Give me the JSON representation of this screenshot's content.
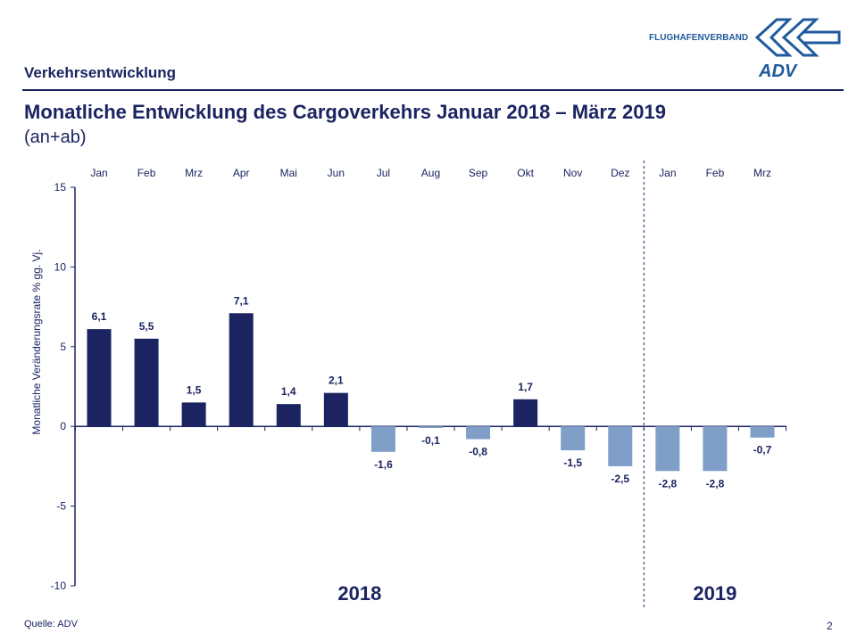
{
  "header": {
    "section": "Verkehrsentwicklung",
    "title": "Monatliche Entwicklung des Cargoverkehrs  Januar 2018 – März 2019",
    "subtitle": "(an+ab)",
    "brand_text": "FLUGHAFENVERBAND",
    "logo_text": "ADV"
  },
  "footer": {
    "source": "Quelle: ADV",
    "page": "2"
  },
  "colors": {
    "positive": "#1b2461",
    "negative": "#809fc8",
    "text": "#1b2461"
  },
  "chart_data": {
    "type": "bar",
    "categories": [
      "Jan",
      "Feb",
      "Mrz",
      "Apr",
      "Mai",
      "Jun",
      "Jul",
      "Aug",
      "Sep",
      "Okt",
      "Nov",
      "Dez",
      "Jan",
      "Feb",
      "Mrz"
    ],
    "values": [
      6.1,
      5.5,
      1.5,
      7.1,
      1.4,
      2.1,
      -1.6,
      -0.1,
      -0.8,
      1.7,
      -1.5,
      -2.5,
      -2.8,
      -2.8,
      -0.7
    ],
    "data_labels": [
      "6,1",
      "5,5",
      "1,5",
      "7,1",
      "1,4",
      "2,1",
      "-1,6",
      "-0,1",
      "-0,8",
      "1,7",
      "-1,5",
      "-2,5",
      "-2,8",
      "-2,8",
      "-0,7"
    ],
    "ylabel": "Monatliche Veränderungsrate % gg. Vj.",
    "ylim": [
      -10,
      15
    ],
    "yticks": [
      15,
      10,
      5,
      0,
      -5,
      -10
    ],
    "ytick_labels": [
      "15",
      "10",
      "5",
      "0",
      "-5",
      "-10"
    ],
    "groups": [
      {
        "label": "2018",
        "months": 12
      },
      {
        "label": "2019",
        "months": 3
      }
    ],
    "category_axis_position": "top",
    "grid": false
  }
}
